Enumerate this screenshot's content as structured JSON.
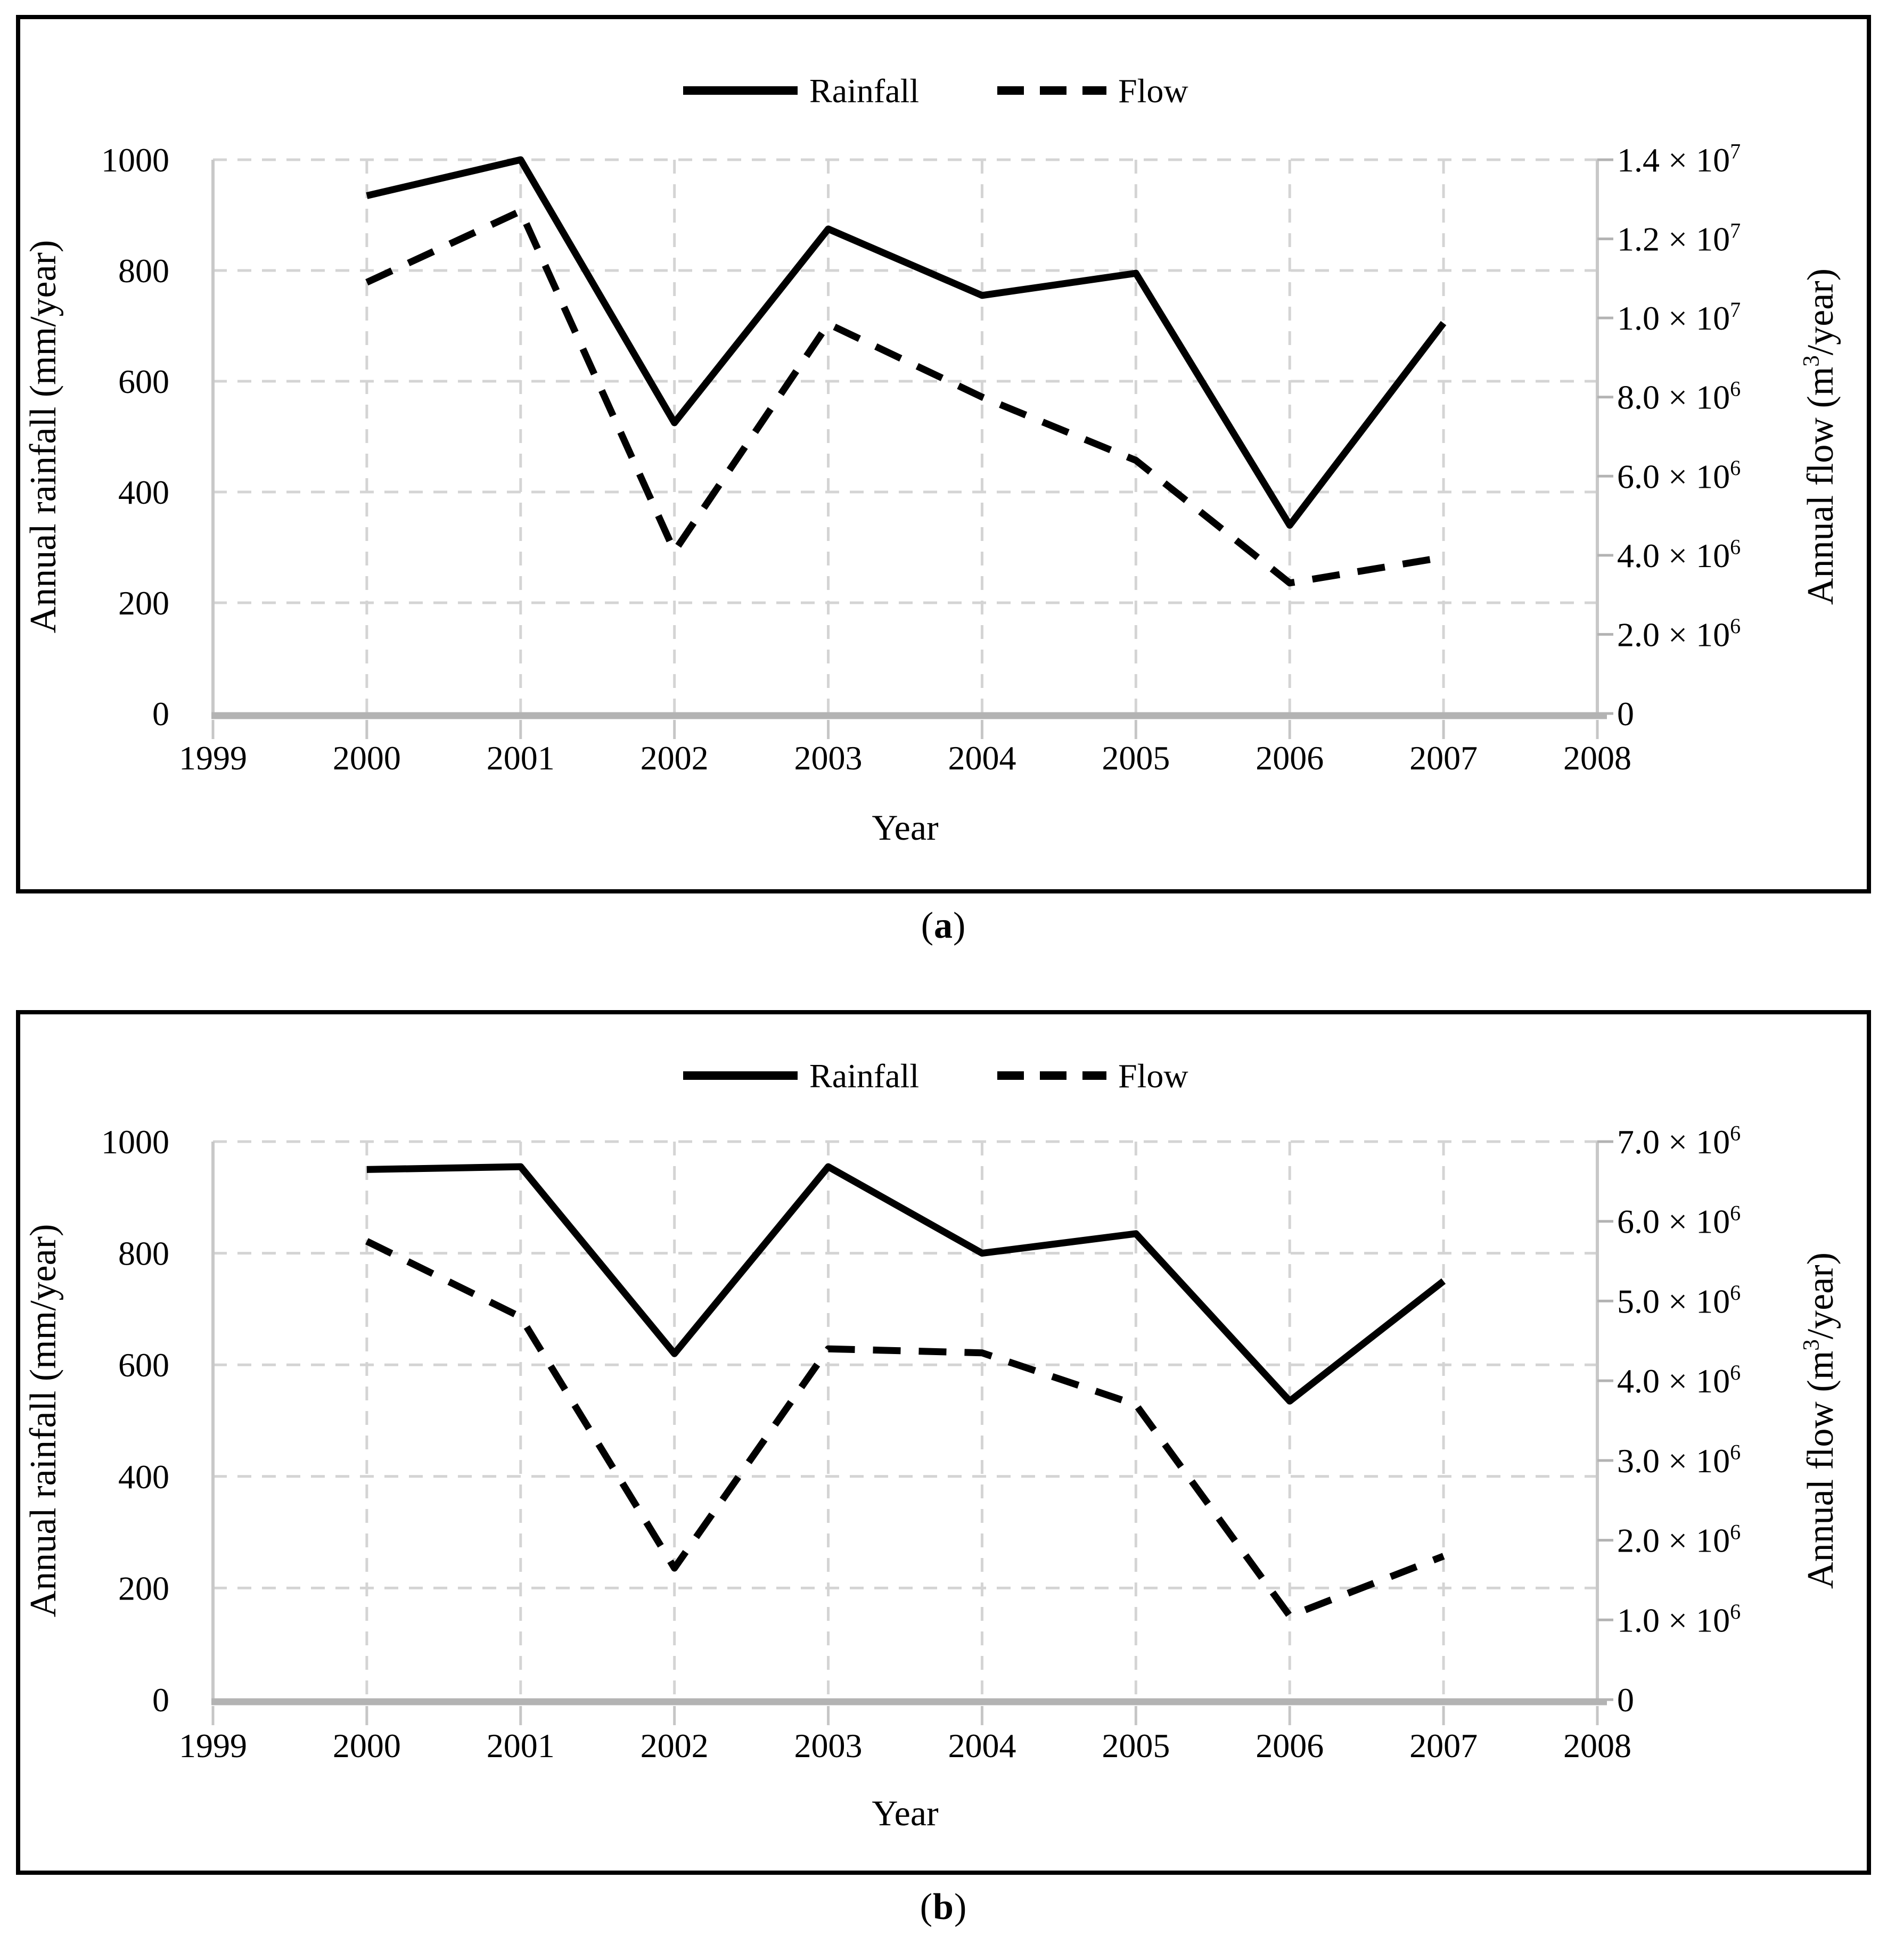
{
  "page": {
    "colors": {
      "series": "#000000",
      "grid": "#d4d4d4",
      "plot_border": "#c8c8c8",
      "axis_line": "#b3b3b3",
      "tick": "#c6c6c6",
      "text": "#000000"
    }
  },
  "chart_data": [
    {
      "type": "line",
      "panel": "a",
      "caption_open": "(",
      "caption_letter": "a",
      "caption_close": ")",
      "xlabel": "Year",
      "x_min": 1999,
      "x_max": 2008,
      "x_ticks": [
        "1999",
        "2000",
        "2001",
        "2002",
        "2003",
        "2004",
        "2005",
        "2006",
        "2007",
        "2008"
      ],
      "x_years": [
        2000,
        2001,
        2002,
        2003,
        2004,
        2005,
        2006,
        2007
      ],
      "left_axis": {
        "label": "Annual rainfall (mm/year)",
        "min": 0,
        "max": 1000,
        "ticks": [
          0,
          200,
          400,
          600,
          800,
          1000
        ],
        "tick_labels": [
          "0",
          "200",
          "400",
          "600",
          "800",
          "1000"
        ],
        "grid": true
      },
      "right_axis": {
        "label": "Annual flow (m^3/year)",
        "min": 0,
        "max": 14000000,
        "ticks": [
          {
            "value": 0,
            "label": "0"
          },
          {
            "value": 2000000,
            "label": "2.0 × 10^6"
          },
          {
            "value": 4000000,
            "label": "4.0 × 10^6"
          },
          {
            "value": 6000000,
            "label": "6.0 × 10^6"
          },
          {
            "value": 8000000,
            "label": "8.0 × 10^6"
          },
          {
            "value": 10000000,
            "label": "1.0 × 10^7"
          },
          {
            "value": 12000000,
            "label": "1.2 × 10^7"
          },
          {
            "value": 14000000,
            "label": "1.4 × 10^7"
          }
        ]
      },
      "legend": [
        {
          "name": "Rainfall",
          "style": "solid"
        },
        {
          "name": "Flow",
          "style": "dashed"
        }
      ],
      "series": [
        {
          "name": "Rainfall",
          "axis": "left",
          "style": "solid",
          "values": [
            935,
            1000,
            525,
            875,
            755,
            795,
            340,
            705
          ]
        },
        {
          "name": "Flow",
          "axis": "right",
          "style": "dashed",
          "values": [
            10900000,
            12700000,
            4100000,
            9850000,
            8000000,
            6400000,
            3300000,
            3950000
          ]
        }
      ]
    },
    {
      "type": "line",
      "panel": "b",
      "caption_open": "(",
      "caption_letter": "b",
      "caption_close": ")",
      "xlabel": "Year",
      "x_min": 1999,
      "x_max": 2008,
      "x_ticks": [
        "1999",
        "2000",
        "2001",
        "2002",
        "2003",
        "2004",
        "2005",
        "2006",
        "2007",
        "2008"
      ],
      "x_years": [
        2000,
        2001,
        2002,
        2003,
        2004,
        2005,
        2006,
        2007
      ],
      "left_axis": {
        "label": "Annual rainfall (mm/year)",
        "min": 0,
        "max": 1000,
        "ticks": [
          0,
          200,
          400,
          600,
          800,
          1000
        ],
        "tick_labels": [
          "0",
          "200",
          "400",
          "600",
          "800",
          "1000"
        ],
        "grid": true
      },
      "right_axis": {
        "label": "Annual flow (m^3/year)",
        "min": 0,
        "max": 7000000,
        "ticks": [
          {
            "value": 0,
            "label": "0"
          },
          {
            "value": 1000000,
            "label": "1.0 × 10^6"
          },
          {
            "value": 2000000,
            "label": "2.0 × 10^6"
          },
          {
            "value": 3000000,
            "label": "3.0 × 10^6"
          },
          {
            "value": 4000000,
            "label": "4.0 × 10^6"
          },
          {
            "value": 5000000,
            "label": "5.0 × 10^6"
          },
          {
            "value": 6000000,
            "label": "6.0 × 10^6"
          },
          {
            "value": 7000000,
            "label": "7.0 × 10^6"
          }
        ]
      },
      "legend": [
        {
          "name": "Rainfall",
          "style": "solid"
        },
        {
          "name": "Flow",
          "style": "dashed"
        }
      ],
      "series": [
        {
          "name": "Rainfall",
          "axis": "left",
          "style": "solid",
          "values": [
            950,
            955,
            620,
            955,
            800,
            835,
            535,
            750
          ]
        },
        {
          "name": "Flow",
          "axis": "right",
          "style": "dashed",
          "values": [
            5750000,
            4800000,
            1650000,
            4400000,
            4350000,
            3700000,
            1050000,
            1800000
          ]
        }
      ]
    }
  ]
}
